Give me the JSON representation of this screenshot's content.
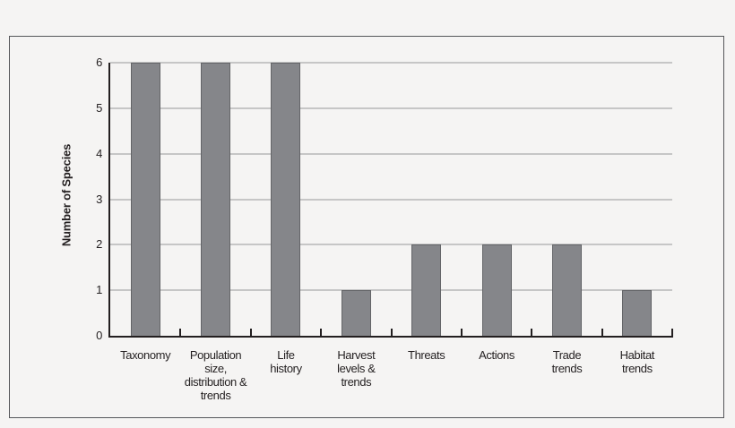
{
  "chart_data": {
    "type": "bar",
    "categories": [
      "Taxonomy",
      "Population size, distribution & trends",
      "Life history",
      "Harvest levels & trends",
      "Threats",
      "Actions",
      "Trade trends",
      "Habitat trends"
    ],
    "category_lines": [
      [
        "Taxonomy"
      ],
      [
        "Population",
        "size,",
        "distribution &",
        "trends"
      ],
      [
        "Life",
        "history"
      ],
      [
        "Harvest",
        "levels &",
        "trends"
      ],
      [
        "Threats"
      ],
      [
        "Actions"
      ],
      [
        "Trade",
        "trends"
      ],
      [
        "Habitat",
        "trends"
      ]
    ],
    "values": [
      6,
      6,
      6,
      1,
      2,
      2,
      2,
      1
    ],
    "title": "",
    "xlabel": "",
    "ylabel": "Number of Species",
    "yticks": [
      0,
      1,
      2,
      3,
      4,
      5,
      6
    ],
    "ylim": [
      0,
      6
    ],
    "grid": "horizontal",
    "legend": "none",
    "colors": {
      "bar_fill": "#85868a",
      "bar_edge": "#636467",
      "gridline": "#c6c6c6",
      "axis": "#231f20",
      "text": "#231f20",
      "background": "#f5f4f3",
      "frame_border": "#55565a"
    }
  }
}
